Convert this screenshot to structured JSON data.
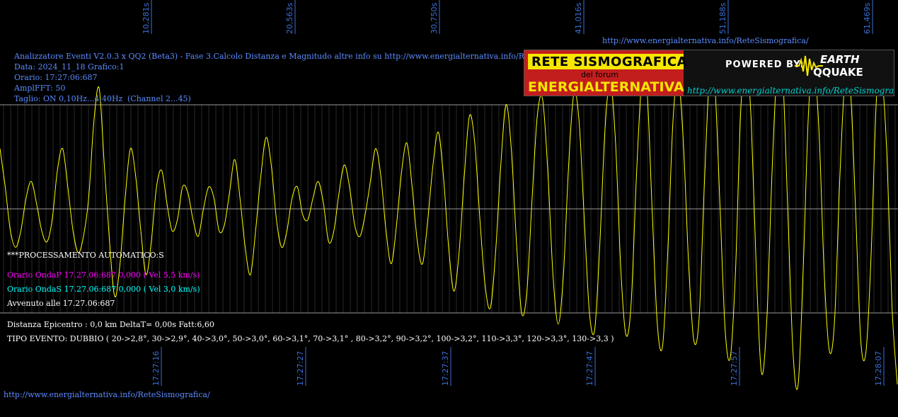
{
  "header": {
    "title": "Analizzatore Eventi V2.0.3 x QQ2 (Beta3) - Fase 3.Calcolo Distanza e Magnitudo altre info su http://www.energialternativa.info/ReteSism",
    "data": "Data: 2024_11_18 Grafico:1",
    "orario": "Orario: 17:27:06:687",
    "ampl": "AmplFFT: 50",
    "taglio": "Taglio: ON 0,10Hz...4,40Hz",
    "channel": "(Channel 2...45)"
  },
  "url_top": "http://www.energialternativa.info/ReteSismografica/",
  "url_bottom": "http://www.energialternativa.info/ReteSismografica/",
  "logo": {
    "line1": "RETE SISMOGRAFICA",
    "line2": "del forum",
    "line3": "ENERGIALTERNATIVA",
    "powered": "POWERED BY:",
    "earth": "EARTH",
    "qquake": "QQUAKE",
    "url": "http://www.energialternativa.info/ReteSismografica"
  },
  "processing": {
    "heading": "***PROCESSAMENTO AUTOMATICO:S",
    "onda_p": "Orario OndaP 17.27.06:687  0,000 ( Vel 5,5 km/s)",
    "onda_s": "Orario OndaS 17.27.06:687  0,000 ( Vel 3,0 km/s)",
    "avvenuto": "Avvenuto alle 17.27.06:687",
    "distanza": "Distanza Epicentro : 0,0 km DeltaT= 0,00s  Fatt:6,60",
    "tipo_evento": "TIPO EVENTO: DUBBIO ( 20->2,8°, 30->2,9°, 40->3,0°, 50->3,0°, 60->3,1°, 70->3,1° , 80->3,2°, 90->3,2°, 100->3,2°, 110->3,3°, 120->3,3°, 130->3,3 )"
  },
  "colors": {
    "signal": "#ffff00",
    "grid": "#555555",
    "hline": "#9a9a9a",
    "tick": "#3b6fd6"
  },
  "chart_data": {
    "type": "line",
    "x_seconds_ticks": [
      "10,281s",
      "20,563s",
      "30,750s",
      "41,016s",
      "51,188s",
      "61,469s"
    ],
    "x_time_ticks": [
      "17:27:16",
      "17:27:27",
      "17:27:37",
      "17:27:47",
      "17:27:57",
      "17:28:07"
    ],
    "grid": true,
    "series": [
      {
        "color": "#ffff00",
        "values": [
          0.55,
          0.2,
          -0.2,
          -0.35,
          -0.2,
          0.1,
          0.25,
          0.05,
          -0.2,
          -0.3,
          -0.1,
          0.35,
          0.55,
          0.2,
          -0.2,
          -0.4,
          -0.25,
          0.1,
          0.8,
          1.1,
          0.4,
          -0.3,
          -0.8,
          -0.5,
          0.1,
          0.55,
          0.3,
          -0.2,
          -0.6,
          -0.3,
          0.2,
          0.35,
          0.05,
          -0.2,
          -0.1,
          0.2,
          0.15,
          -0.1,
          -0.25,
          0.0,
          0.2,
          0.1,
          -0.2,
          -0.15,
          0.15,
          0.45,
          0.1,
          -0.35,
          -0.6,
          -0.2,
          0.3,
          0.65,
          0.4,
          -0.1,
          -0.35,
          -0.2,
          0.1,
          0.2,
          -0.05,
          -0.1,
          0.1,
          0.25,
          0.05,
          -0.3,
          -0.2,
          0.15,
          0.4,
          0.2,
          -0.15,
          -0.25,
          -0.05,
          0.25,
          0.55,
          0.3,
          -0.2,
          -0.5,
          -0.15,
          0.35,
          0.6,
          0.2,
          -0.3,
          -0.5,
          -0.1,
          0.4,
          0.7,
          0.3,
          -0.35,
          -0.75,
          -0.4,
          0.3,
          0.85,
          0.6,
          -0.1,
          -0.7,
          -0.9,
          -0.4,
          0.4,
          0.95,
          0.55,
          -0.3,
          -0.95,
          -0.75,
          0.1,
          0.85,
          1.0,
          0.35,
          -0.6,
          -1.05,
          -0.6,
          0.4,
          1.05,
          0.8,
          -0.1,
          -0.95,
          -1.1,
          -0.3,
          0.75,
          1.15,
          0.6,
          -0.55,
          -1.15,
          -0.85,
          0.3,
          1.15,
          1.1,
          0.0,
          -1.05,
          -1.25,
          -0.4,
          0.8,
          1.2,
          0.6,
          -0.5,
          -1.2,
          -1.0,
          0.2,
          1.2,
          1.15,
          0.05,
          -1.1,
          -1.35,
          -0.55,
          0.9,
          1.35,
          0.8,
          -0.6,
          -1.5,
          -1.0,
          0.35,
          1.3,
          1.25,
          0.0,
          -1.3,
          -1.6,
          -0.5,
          0.9,
          1.3,
          0.7,
          -0.6,
          -1.3,
          -1.0,
          0.3,
          1.2,
          1.1,
          0.0,
          -1.2,
          -1.3,
          -0.4,
          1.0,
          1.2,
          0.5,
          -0.9,
          -1.6
        ]
      }
    ]
  }
}
